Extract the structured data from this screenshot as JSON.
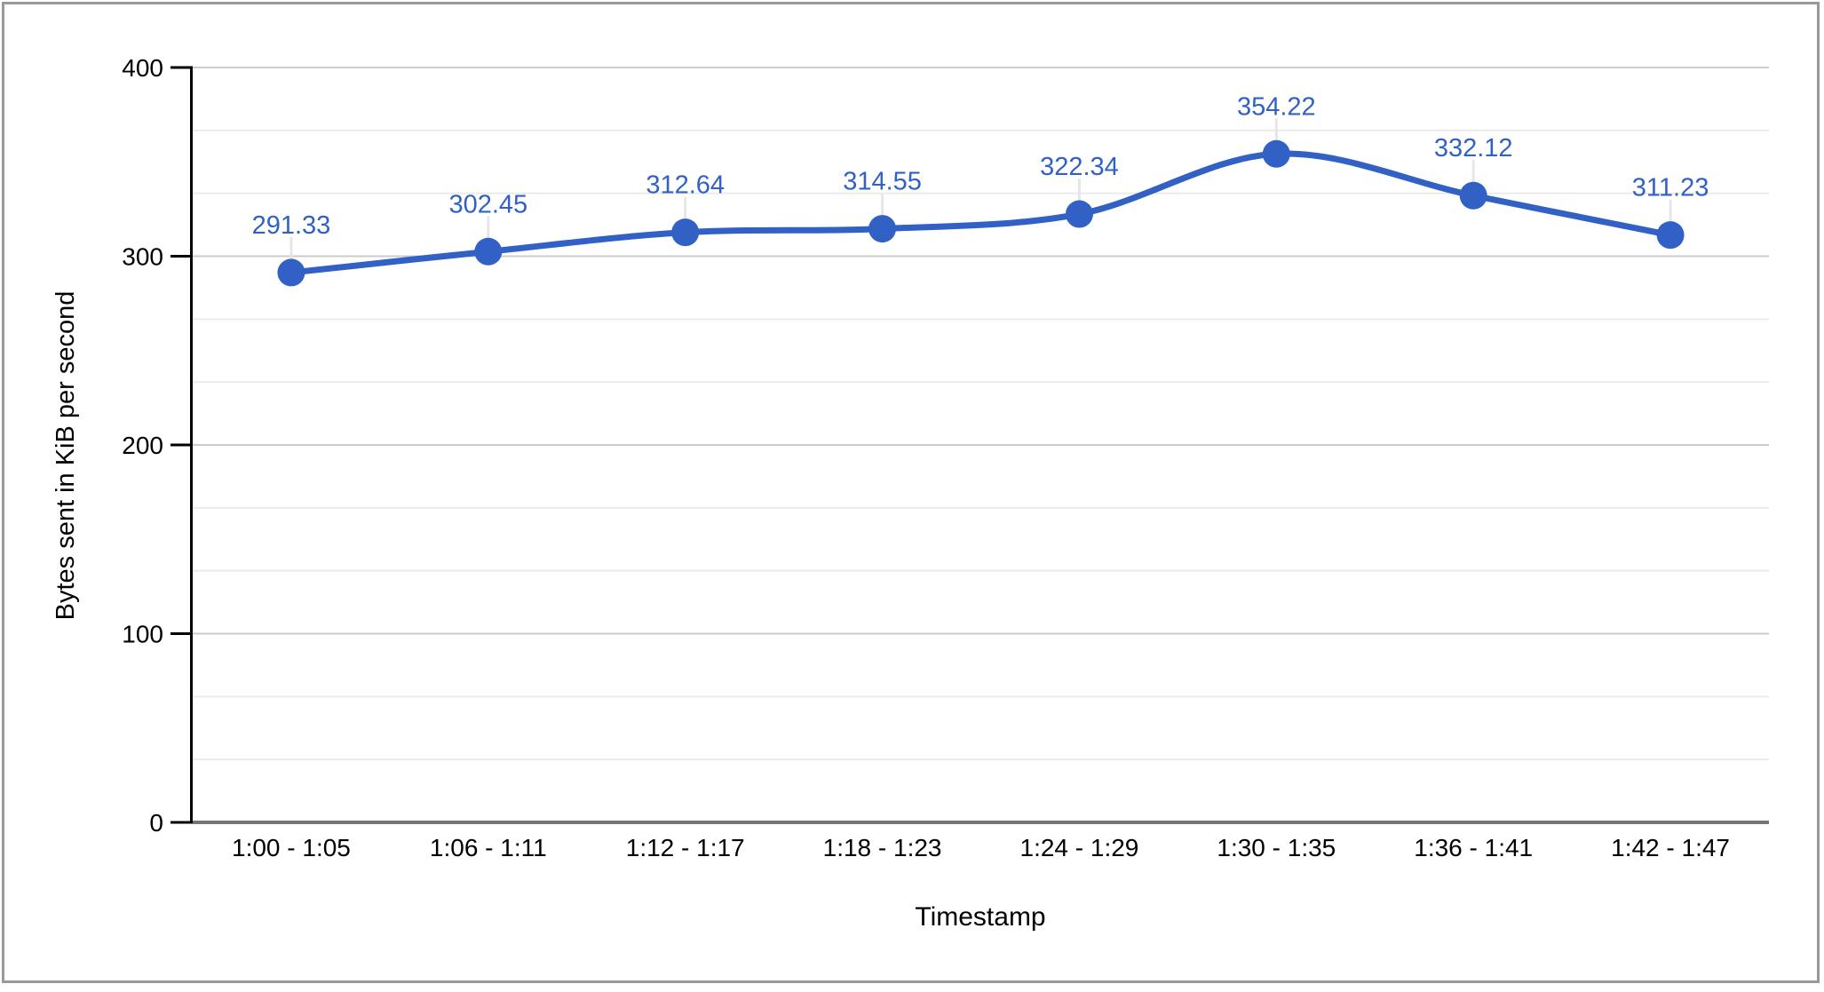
{
  "chart_data": {
    "type": "line",
    "title": "",
    "xlabel": "Timestamp",
    "ylabel": "Bytes sent in KiB per second",
    "categories": [
      "1:00 - 1:05",
      "1:06 - 1:11",
      "1:12 - 1:17",
      "1:18 - 1:23",
      "1:24 - 1:29",
      "1:30 - 1:35",
      "1:36 - 1:41",
      "1:42 - 1:47"
    ],
    "series": [
      {
        "name": "Bytes sent in KiB per second",
        "values": [
          291.33,
          302.45,
          312.64,
          314.55,
          322.34,
          354.22,
          332.12,
          311.23
        ]
      }
    ],
    "point_labels": [
      "291.33",
      "302.45",
      "312.64",
      "314.55",
      "322.34",
      "354.22",
      "332.12",
      "311.23"
    ],
    "ylim": [
      0,
      400
    ],
    "yticks": [
      0,
      100,
      200,
      300,
      400
    ],
    "minor_gridlines_per_major_interval": 2,
    "grid": "horizontal",
    "legend_position": "none",
    "line_smooth": true
  },
  "colors": {
    "series_blue": "#3161c5",
    "data_label_blue": "#3161c5",
    "axis_text": "#000000",
    "major_gridline": "#cccccc",
    "minor_gridline": "#ebebeb",
    "baseline": "#757575",
    "axis_line": "#000000",
    "label_stem": "#e6e6e6",
    "frame_border": "#999999",
    "background": "#ffffff"
  }
}
